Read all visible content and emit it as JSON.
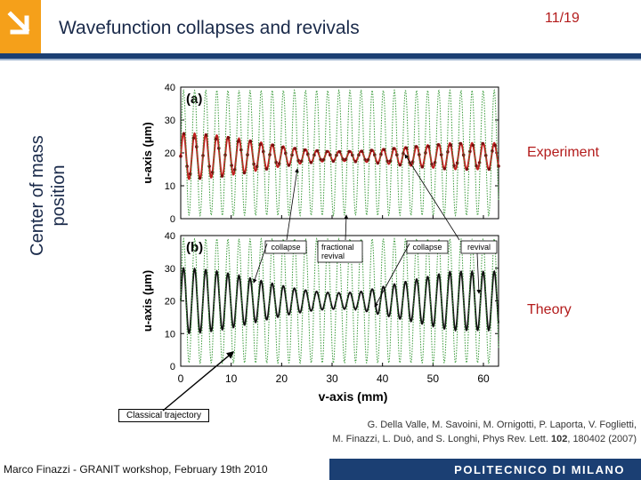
{
  "header": {
    "title": "Wavefunction collapses and revivals",
    "page": "11/19"
  },
  "side_labels": {
    "y_label_line1": "Center of mass",
    "y_label_line2": "position",
    "experiment": "Experiment",
    "theory": "Theory",
    "classical": "Classical trajectory"
  },
  "reference": {
    "line1": "G. Della Valle, M. Savoini, M. Ornigotti, P. Laporta, V. Foglietti,",
    "line2_pre": "M. Finazzi, L. Duò, and S. Longhi, Phys Rev. Lett. ",
    "line2_vol": "102",
    "line2_post": ", 180402 (2007)"
  },
  "footer": {
    "author": "Marco Finazzi - GRANIT workshop, February 19th 2010",
    "institution": "POLITECNICO DI MILANO"
  },
  "colors": {
    "brand_blue": "#1b3f73",
    "accent_orange": "#f5a01a",
    "accent_red": "#b31b1b",
    "experiment_trace": "#c0201f",
    "theory_trace": "#111111",
    "classical_trace": "#3a9a3a"
  },
  "chart_data": [
    {
      "type": "line",
      "panel": "(a)",
      "ylabel": "u-axis (μm)",
      "ylim": [
        0,
        40
      ],
      "yticks": [
        0,
        10,
        20,
        30,
        40
      ],
      "xlim": [
        0,
        63
      ],
      "series": [
        {
          "role": "measured",
          "style": "red line with markers",
          "mean": 19,
          "amplitude_start": 7,
          "amplitude_mid": 1.5,
          "amplitude_end": 4,
          "period": 2.2
        },
        {
          "role": "classical",
          "style": "green dotted",
          "mean": 20,
          "amplitude": 19,
          "period": 2.2
        }
      ],
      "annotations": [
        "collapse",
        "fractional revival",
        "collapse",
        "revival"
      ]
    },
    {
      "type": "line",
      "panel": "(b)",
      "ylabel": "u-axis (μm)",
      "xlabel": "v-axis (mm)",
      "ylim": [
        0,
        40
      ],
      "yticks": [
        0,
        10,
        20,
        30,
        40
      ],
      "xlim": [
        0,
        63
      ],
      "xticks": [
        0,
        10,
        20,
        30,
        40,
        50,
        60
      ],
      "series": [
        {
          "role": "theory",
          "style": "black solid",
          "mean": 20,
          "amplitude_start": 10,
          "amplitude_mid": 2.5,
          "amplitude_end": 9,
          "period": 2.2
        },
        {
          "role": "classical",
          "style": "green dotted",
          "mean": 20,
          "amplitude": 19,
          "period": 2.2
        }
      ]
    }
  ]
}
